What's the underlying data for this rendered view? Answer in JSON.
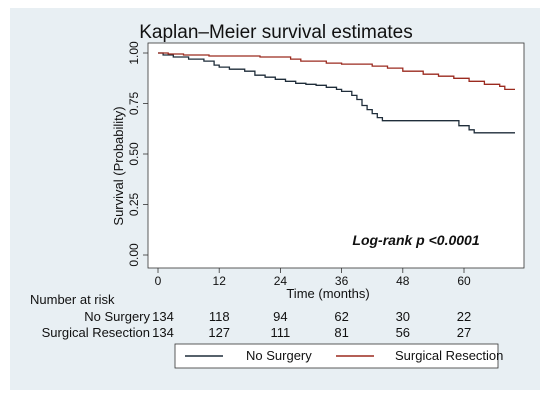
{
  "chart_data": {
    "type": "line",
    "title": "Kaplan–Meier survival estimates",
    "xlabel": "Time (months)",
    "ylabel": "Survival (Probability)",
    "xlim": [
      0,
      70
    ],
    "ylim": [
      0,
      1
    ],
    "x_ticks": [
      "0",
      "12",
      "24",
      "36",
      "48",
      "60"
    ],
    "y_ticks": [
      "0.00",
      "0.25",
      "0.50",
      "0.75",
      "1.00"
    ],
    "grid": false,
    "legend_position": "bottom",
    "annotation": "Log-rank p <0.0001",
    "series": [
      {
        "name": "No Surgery",
        "color": "#1f2d3a",
        "step": true,
        "points": [
          [
            0,
            1.0
          ],
          [
            1,
            0.99
          ],
          [
            3,
            0.98
          ],
          [
            6,
            0.97
          ],
          [
            9,
            0.96
          ],
          [
            11,
            0.94
          ],
          [
            12,
            0.93
          ],
          [
            14,
            0.92
          ],
          [
            17,
            0.91
          ],
          [
            19,
            0.89
          ],
          [
            21,
            0.88
          ],
          [
            23,
            0.87
          ],
          [
            25,
            0.86
          ],
          [
            27,
            0.85
          ],
          [
            29,
            0.845
          ],
          [
            31,
            0.84
          ],
          [
            33,
            0.83
          ],
          [
            35,
            0.82
          ],
          [
            36,
            0.81
          ],
          [
            38,
            0.79
          ],
          [
            39,
            0.77
          ],
          [
            40,
            0.74
          ],
          [
            41,
            0.72
          ],
          [
            42,
            0.7
          ],
          [
            43,
            0.68
          ],
          [
            44,
            0.665
          ],
          [
            58,
            0.665
          ],
          [
            59,
            0.64
          ],
          [
            61,
            0.62
          ],
          [
            62,
            0.605
          ],
          [
            70,
            0.605
          ]
        ]
      },
      {
        "name": "Surgical Resection",
        "color": "#9b2a1f",
        "step": true,
        "points": [
          [
            0,
            1.0
          ],
          [
            2,
            0.995
          ],
          [
            5,
            0.99
          ],
          [
            10,
            0.985
          ],
          [
            20,
            0.98
          ],
          [
            26,
            0.97
          ],
          [
            28,
            0.96
          ],
          [
            33,
            0.95
          ],
          [
            36,
            0.945
          ],
          [
            42,
            0.935
          ],
          [
            45,
            0.925
          ],
          [
            48,
            0.91
          ],
          [
            52,
            0.895
          ],
          [
            55,
            0.885
          ],
          [
            58,
            0.875
          ],
          [
            61,
            0.86
          ],
          [
            64,
            0.845
          ],
          [
            67,
            0.835
          ],
          [
            68,
            0.82
          ],
          [
            70,
            0.82
          ]
        ]
      }
    ],
    "risk_table": {
      "header": "Number at risk",
      "rows": [
        {
          "label": "No Surgery",
          "values": [
            "134",
            "118",
            "94",
            "62",
            "30",
            "22"
          ]
        },
        {
          "label": "Surgical Resection",
          "values": [
            "134",
            "127",
            "111",
            "81",
            "56",
            "27"
          ]
        }
      ]
    },
    "legend": [
      "No Surgery",
      "Surgical Resection"
    ]
  }
}
